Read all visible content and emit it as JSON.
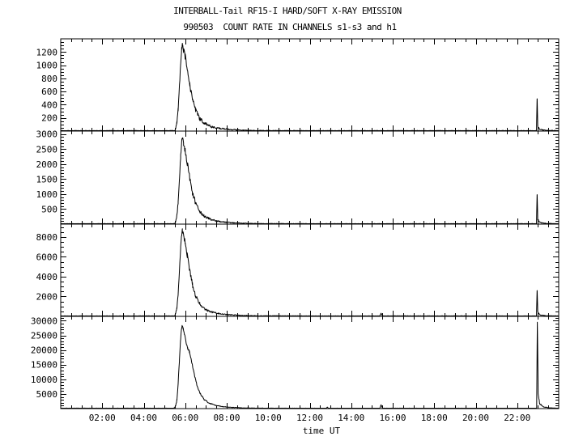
{
  "colors": {
    "background": "#ffffff",
    "axis": "#000000",
    "trace": "#000000"
  },
  "chart_data": {
    "type": "line",
    "title": "INTERBALL-Tail RF15-I HARD/SOFT X-RAY EMISSION",
    "subtitle": "990503  COUNT RATE IN CHANNELS s1-s3 and h1",
    "xlabel": "time UT",
    "grid": false,
    "legend": false,
    "xlim_hours": [
      0,
      24
    ],
    "x_major_tick_step_hours": 2,
    "x_minor_tick_step_hours": 0.5,
    "x_tick_labels": [
      {
        "t": 2,
        "label": "02:00"
      },
      {
        "t": 4,
        "label": "04:00"
      },
      {
        "t": 6,
        "label": "06:00"
      },
      {
        "t": 8,
        "label": "08:00"
      },
      {
        "t": 10,
        "label": "10:00"
      },
      {
        "t": 12,
        "label": "12:00"
      },
      {
        "t": 14,
        "label": "14:00"
      },
      {
        "t": 16,
        "label": "16:00"
      },
      {
        "t": 18,
        "label": "18:00"
      },
      {
        "t": 20,
        "label": "20:00"
      },
      {
        "t": 22,
        "label": "22:00"
      }
    ],
    "panels": [
      {
        "channel": "s1",
        "ylim": [
          0,
          1400
        ],
        "y_major_tick_step": 200,
        "y_minor_tick_step": 50,
        "y_tick_labels": [
          "200",
          "400",
          "600",
          "800",
          "1000",
          "1200"
        ],
        "events": {
          "flare_peak": {
            "t": 5.86,
            "value": 1320
          },
          "late_spike": {
            "t": 22.96,
            "value": 490
          }
        },
        "points": [
          [
            0.0,
            6,
            4
          ],
          [
            5.3,
            6,
            4
          ],
          [
            5.5,
            8,
            5
          ],
          [
            5.54,
            45,
            10
          ],
          [
            5.6,
            130,
            18
          ],
          [
            5.66,
            330,
            25
          ],
          [
            5.72,
            680,
            35
          ],
          [
            5.78,
            1020,
            40
          ],
          [
            5.83,
            1240,
            35
          ],
          [
            5.86,
            1320,
            25
          ],
          [
            5.92,
            1230,
            45
          ],
          [
            6.0,
            1120,
            50
          ],
          [
            6.1,
            930,
            50
          ],
          [
            6.22,
            690,
            48
          ],
          [
            6.35,
            480,
            42
          ],
          [
            6.5,
            320,
            36
          ],
          [
            6.7,
            190,
            30
          ],
          [
            6.95,
            112,
            24
          ],
          [
            7.3,
            62,
            16
          ],
          [
            7.7,
            38,
            11
          ],
          [
            8.2,
            22,
            8
          ],
          [
            8.8,
            13,
            6
          ],
          [
            9.5,
            8,
            5
          ],
          [
            12.0,
            6,
            4
          ],
          [
            22.88,
            6,
            4
          ],
          [
            22.93,
            8,
            4
          ],
          [
            22.96,
            490,
            0
          ],
          [
            22.99,
            70,
            12
          ],
          [
            23.1,
            26,
            8
          ],
          [
            23.35,
            11,
            5
          ],
          [
            24.0,
            6,
            4
          ]
        ]
      },
      {
        "channel": "s2",
        "ylim": [
          0,
          3100
        ],
        "y_major_tick_step": 500,
        "y_minor_tick_step": 100,
        "y_tick_labels": [
          "500",
          "1000",
          "1500",
          "2000",
          "2500",
          "3000"
        ],
        "events": {
          "flare_peak": {
            "t": 5.86,
            "value": 2880
          },
          "late_spike": {
            "t": 22.96,
            "value": 980
          }
        },
        "points": [
          [
            0.0,
            13,
            7
          ],
          [
            5.3,
            13,
            7
          ],
          [
            5.5,
            17,
            9
          ],
          [
            5.54,
            100,
            22
          ],
          [
            5.6,
            290,
            40
          ],
          [
            5.66,
            730,
            55
          ],
          [
            5.72,
            1500,
            75
          ],
          [
            5.78,
            2240,
            85
          ],
          [
            5.83,
            2720,
            75
          ],
          [
            5.86,
            2880,
            55
          ],
          [
            5.92,
            2700,
            95
          ],
          [
            6.0,
            2450,
            105
          ],
          [
            6.1,
            2030,
            105
          ],
          [
            6.22,
            1510,
            100
          ],
          [
            6.35,
            1050,
            88
          ],
          [
            6.5,
            700,
            75
          ],
          [
            6.7,
            415,
            60
          ],
          [
            6.95,
            245,
            45
          ],
          [
            7.3,
            136,
            32
          ],
          [
            7.7,
            83,
            22
          ],
          [
            8.2,
            48,
            15
          ],
          [
            8.8,
            28,
            11
          ],
          [
            9.5,
            18,
            8
          ],
          [
            12.0,
            13,
            7
          ],
          [
            22.88,
            13,
            7
          ],
          [
            22.93,
            16,
            8
          ],
          [
            22.96,
            980,
            0
          ],
          [
            22.99,
            150,
            24
          ],
          [
            23.1,
            56,
            15
          ],
          [
            23.35,
            24,
            9
          ],
          [
            24.0,
            13,
            7
          ]
        ]
      },
      {
        "channel": "s3",
        "ylim": [
          0,
          9300
        ],
        "y_major_tick_step": 2000,
        "y_minor_tick_step": 500,
        "y_tick_labels": [
          "2000",
          "4000",
          "6000",
          "8000"
        ],
        "events": {
          "flare_peak": {
            "t": 5.86,
            "value": 8750
          },
          "late_spike": {
            "t": 22.96,
            "value": 2600
          }
        },
        "points": [
          [
            0.0,
            38,
            18
          ],
          [
            5.3,
            38,
            18
          ],
          [
            5.5,
            50,
            24
          ],
          [
            5.54,
            300,
            60
          ],
          [
            5.6,
            880,
            110
          ],
          [
            5.66,
            2200,
            160
          ],
          [
            5.72,
            4500,
            210
          ],
          [
            5.78,
            6800,
            240
          ],
          [
            5.83,
            8250,
            210
          ],
          [
            5.86,
            8750,
            160
          ],
          [
            5.92,
            8250,
            270
          ],
          [
            6.0,
            7450,
            300
          ],
          [
            6.1,
            6150,
            300
          ],
          [
            6.22,
            4570,
            280
          ],
          [
            6.35,
            3180,
            250
          ],
          [
            6.5,
            2120,
            210
          ],
          [
            6.7,
            1260,
            165
          ],
          [
            6.95,
            740,
            125
          ],
          [
            7.3,
            410,
            85
          ],
          [
            7.7,
            250,
            62
          ],
          [
            8.2,
            145,
            44
          ],
          [
            8.8,
            85,
            32
          ],
          [
            9.5,
            55,
            24
          ],
          [
            12.0,
            40,
            18
          ],
          [
            15.38,
            38,
            17
          ],
          [
            15.44,
            320,
            0
          ],
          [
            15.5,
            45,
            20
          ],
          [
            22.88,
            38,
            16
          ],
          [
            22.93,
            45,
            18
          ],
          [
            22.96,
            2600,
            0
          ],
          [
            22.99,
            420,
            65
          ],
          [
            23.1,
            155,
            38
          ],
          [
            23.35,
            65,
            24
          ],
          [
            24.0,
            38,
            16
          ]
        ]
      },
      {
        "channel": "h1",
        "ylim": [
          0,
          31500
        ],
        "y_major_tick_step": 5000,
        "y_minor_tick_step": 1000,
        "y_tick_labels": [
          "5000",
          "10000",
          "15000",
          "20000",
          "25000",
          "30000"
        ],
        "events": {
          "flare_peak": {
            "t": 5.85,
            "value": 28500
          },
          "late_spike": {
            "t": 22.97,
            "value": 29500
          }
        },
        "points": [
          [
            0.0,
            120,
            55
          ],
          [
            5.3,
            120,
            55
          ],
          [
            5.48,
            160,
            70
          ],
          [
            5.54,
            900,
            180
          ],
          [
            5.6,
            3000,
            280
          ],
          [
            5.66,
            8500,
            380
          ],
          [
            5.72,
            16500,
            450
          ],
          [
            5.77,
            23000,
            480
          ],
          [
            5.81,
            26500,
            420
          ],
          [
            5.85,
            28500,
            350
          ],
          [
            5.9,
            27200,
            430
          ],
          [
            5.96,
            25400,
            450
          ],
          [
            6.04,
            22800,
            440
          ],
          [
            6.12,
            20600,
            400
          ],
          [
            6.2,
            19400,
            380
          ],
          [
            6.3,
            16200,
            380
          ],
          [
            6.42,
            12200,
            360
          ],
          [
            6.55,
            8400,
            320
          ],
          [
            6.72,
            5100,
            270
          ],
          [
            6.92,
            3050,
            220
          ],
          [
            7.15,
            1900,
            170
          ],
          [
            7.45,
            1150,
            130
          ],
          [
            7.8,
            680,
            100
          ],
          [
            8.25,
            390,
            75
          ],
          [
            8.8,
            235,
            58
          ],
          [
            9.5,
            150,
            42
          ],
          [
            12.0,
            120,
            35
          ],
          [
            12.8,
            115,
            34
          ],
          [
            12.85,
            520,
            0
          ],
          [
            12.9,
            120,
            36
          ],
          [
            15.38,
            115,
            34
          ],
          [
            15.44,
            1300,
            0
          ],
          [
            15.5,
            125,
            38
          ],
          [
            22.88,
            112,
            32
          ],
          [
            22.94,
            120,
            34
          ],
          [
            22.97,
            29500,
            0
          ],
          [
            23.01,
            5200,
            350
          ],
          [
            23.08,
            1750,
            220
          ],
          [
            23.25,
            620,
            110
          ],
          [
            23.55,
            240,
            60
          ],
          [
            24.0,
            125,
            36
          ]
        ]
      }
    ]
  }
}
